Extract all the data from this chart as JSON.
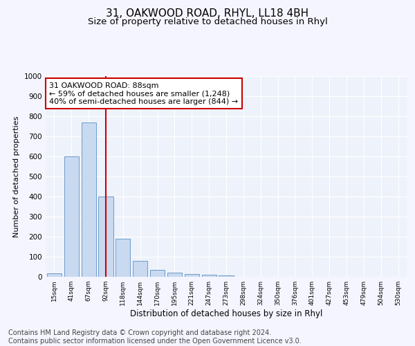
{
  "title1": "31, OAKWOOD ROAD, RHYL, LL18 4BH",
  "title2": "Size of property relative to detached houses in Rhyl",
  "xlabel": "Distribution of detached houses by size in Rhyl",
  "ylabel": "Number of detached properties",
  "bar_color": "#c9d9f0",
  "bar_edge_color": "#5a8fc3",
  "background_color": "#eef2fa",
  "grid_color": "#ffffff",
  "categories": [
    "15sqm",
    "41sqm",
    "67sqm",
    "92sqm",
    "118sqm",
    "144sqm",
    "170sqm",
    "195sqm",
    "221sqm",
    "247sqm",
    "273sqm",
    "298sqm",
    "324sqm",
    "350sqm",
    "376sqm",
    "401sqm",
    "427sqm",
    "453sqm",
    "479sqm",
    "504sqm",
    "530sqm"
  ],
  "values": [
    18,
    600,
    770,
    400,
    190,
    78,
    36,
    20,
    15,
    12,
    8,
    0,
    0,
    0,
    0,
    0,
    0,
    0,
    0,
    0,
    0
  ],
  "ylim": [
    0,
    1000
  ],
  "yticks": [
    0,
    100,
    200,
    300,
    400,
    500,
    600,
    700,
    800,
    900,
    1000
  ],
  "vline_x": 3,
  "vline_color": "#cc0000",
  "annotation_text": "31 OAKWOOD ROAD: 88sqm\n← 59% of detached houses are smaller (1,248)\n40% of semi-detached houses are larger (844) →",
  "annotation_box_color": "#ffffff",
  "annotation_box_edge": "#cc0000",
  "footer_text": "Contains HM Land Registry data © Crown copyright and database right 2024.\nContains public sector information licensed under the Open Government Licence v3.0.",
  "title1_fontsize": 11,
  "title2_fontsize": 9.5,
  "annotation_fontsize": 8,
  "footer_fontsize": 7,
  "ylabel_fontsize": 8,
  "xlabel_fontsize": 8.5
}
